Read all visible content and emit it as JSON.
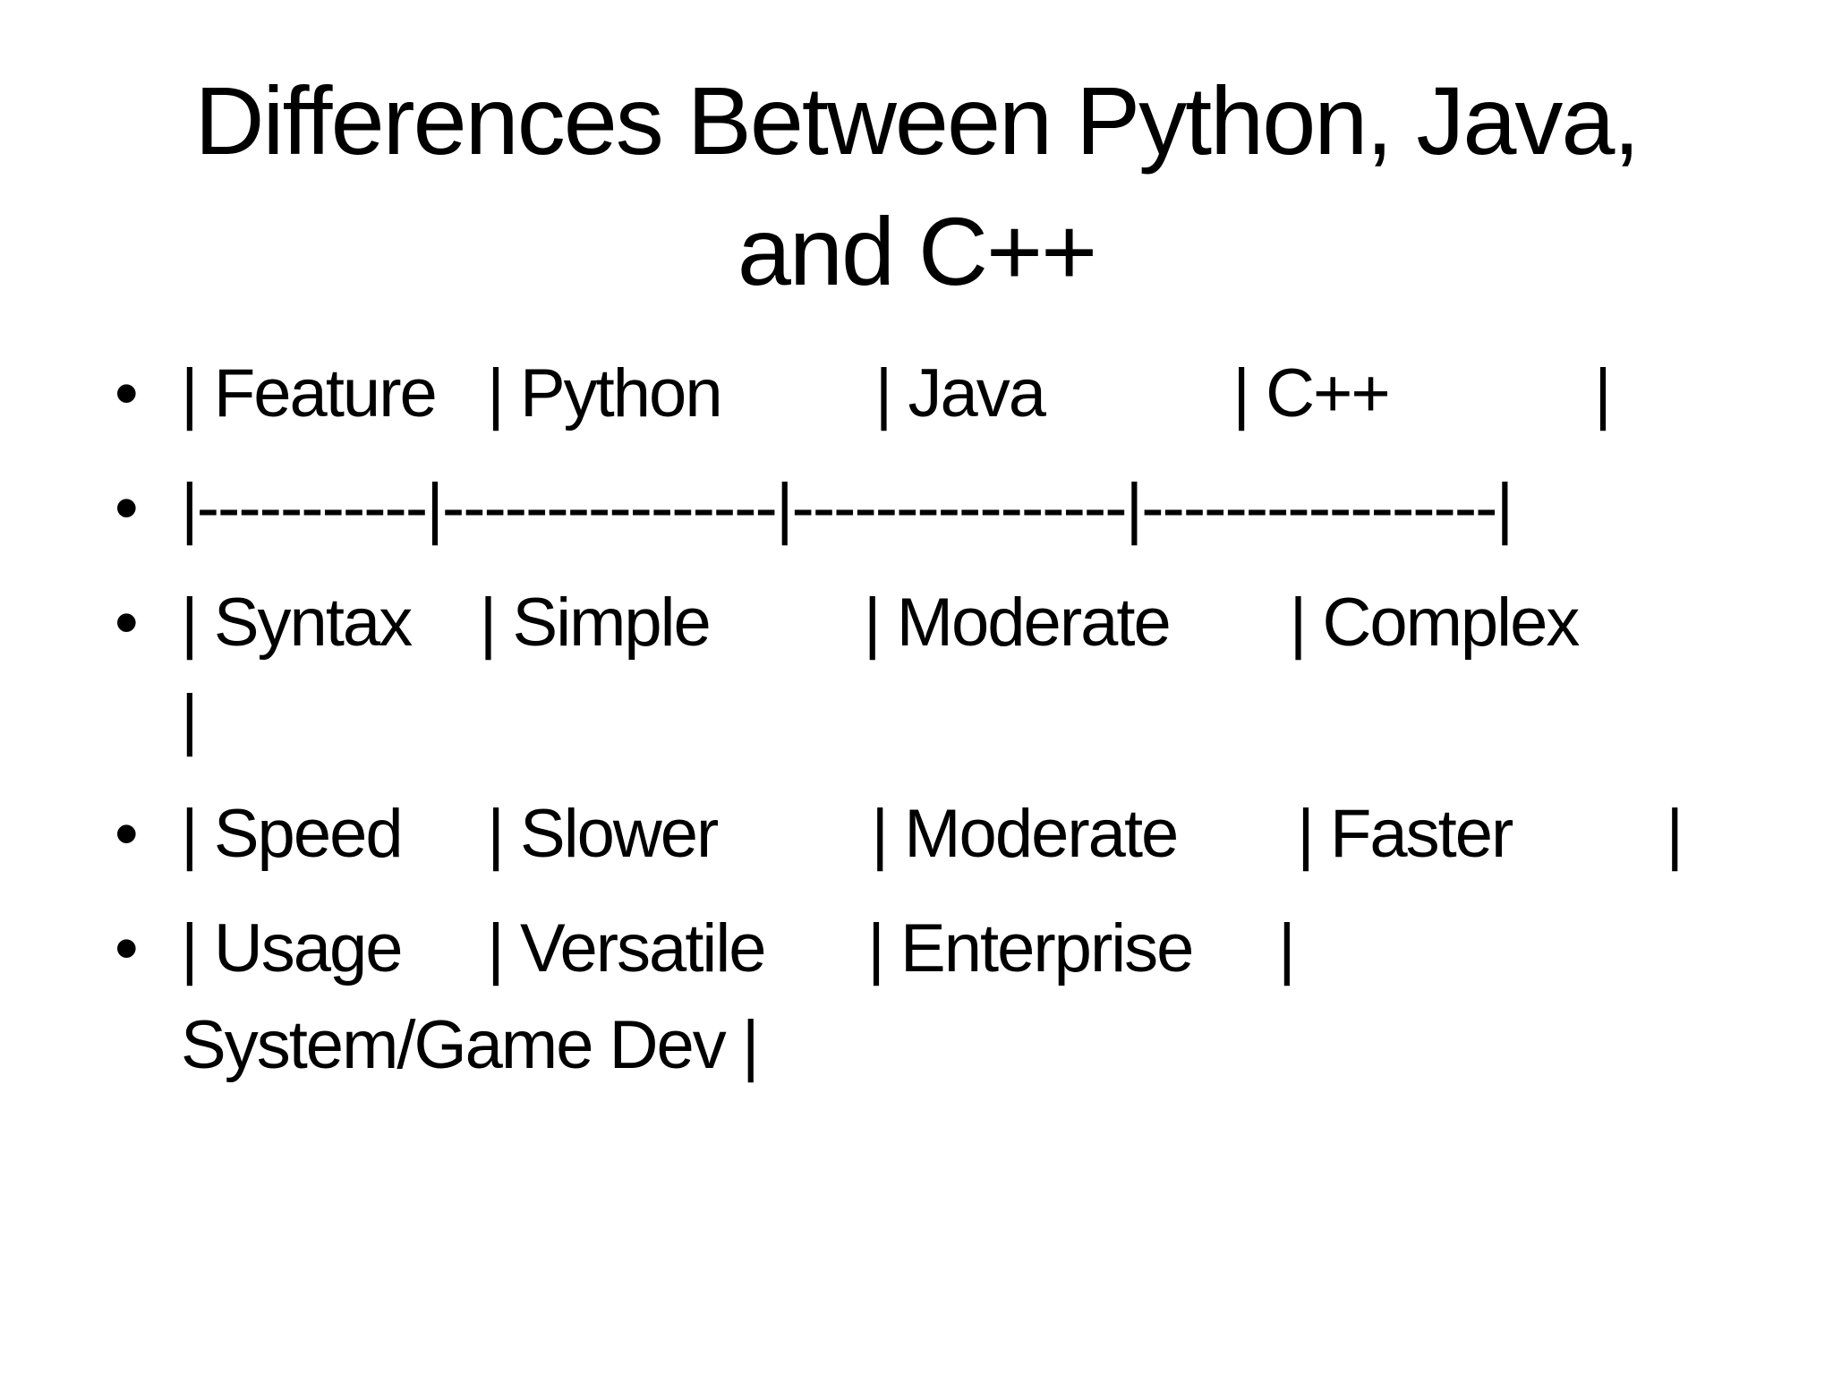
{
  "title": "Differences Between Python, Java, and C++",
  "bullets": [
    "| Feature   | Python         | Java           | C++            |",
    "|-----------|----------------|----------------|-----------------|",
    "| Syntax    | Simple         | Moderate       | Complex        |",
    "| Speed     | Slower         | Moderate       | Faster         |",
    "| Usage     | Versatile      | Enterprise     | System/Game Dev |"
  ]
}
